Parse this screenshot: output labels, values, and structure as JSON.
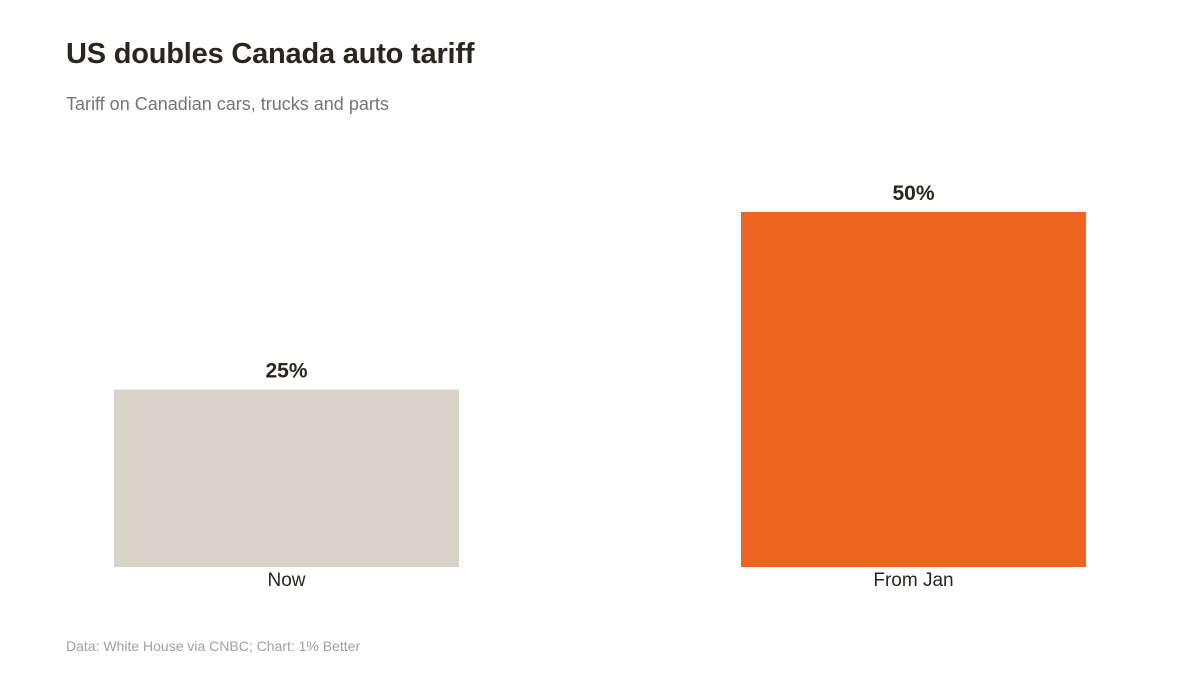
{
  "chart_data": {
    "type": "bar",
    "title": "US doubles Canada auto tariff",
    "subtitle": "Tariff on Canadian cars, trucks and parts",
    "categories": [
      "Now",
      "From Jan"
    ],
    "values": [
      25,
      50
    ],
    "value_labels": [
      "25%",
      "50%"
    ],
    "colors": [
      "#d9d4c9",
      "#ec6420"
    ],
    "ylim": [
      0,
      50
    ],
    "grid": false,
    "source": "Data: White House via CNBC; Chart: 1% Better"
  }
}
